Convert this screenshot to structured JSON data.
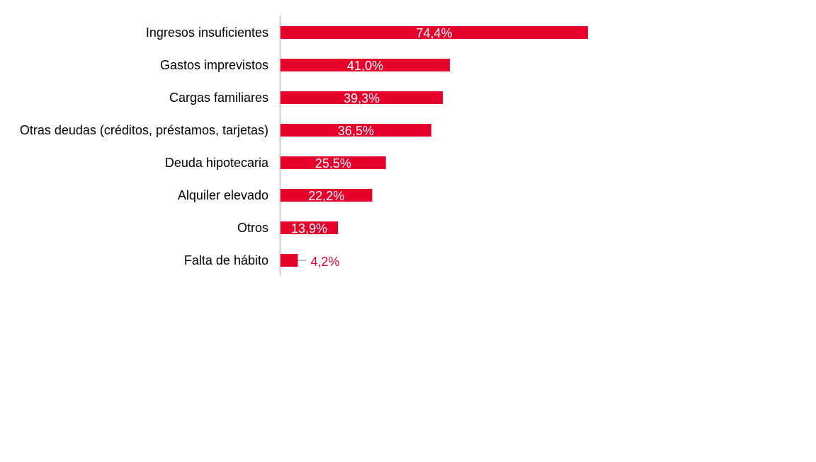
{
  "chart_data": {
    "type": "bar",
    "orientation": "horizontal",
    "categories": [
      "Ingresos insuficientes",
      "Gastos imprevistos",
      "Cargas familiares",
      "Otras deudas (créditos, préstamos, tarjetas)",
      "Deuda hipotecaria",
      "Alquiler elevado",
      "Otros",
      "Falta de hábito"
    ],
    "values": [
      74.4,
      41.0,
      39.3,
      36.5,
      25.5,
      22.2,
      13.9,
      4.2
    ],
    "data_labels": [
      "74,4%",
      "41,0%",
      "39,3%",
      "36,5%",
      "25,5%",
      "22,2%",
      "13,9%",
      "4,2%"
    ],
    "unit": "%",
    "title": "",
    "xlabel": "",
    "ylabel": "",
    "grid": false,
    "colors": {
      "bar": "#e4002b",
      "label_inside": "#ffffff",
      "label_outside": "#e4002b",
      "category_text": "#000000",
      "axis": "#bfbfbf",
      "leader": "#a6a6a6"
    }
  }
}
